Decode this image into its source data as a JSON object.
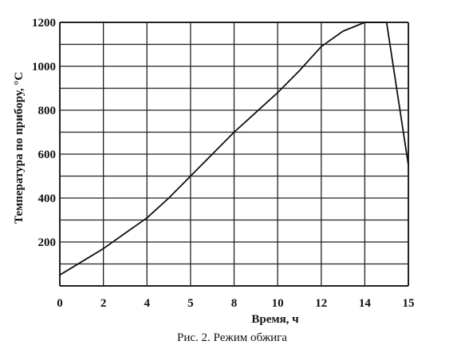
{
  "chart_data": {
    "type": "line",
    "title": "",
    "caption": "Рис. 2. Режим обжига",
    "xlabel": "Время, ч",
    "ylabel": "Температура по прибору, °С",
    "x_ticks": [
      "0",
      "2",
      "4",
      "5",
      "8",
      "10",
      "12",
      "14",
      "15"
    ],
    "y_ticks": [
      "200",
      "400",
      "600",
      "800",
      "1000",
      "1200"
    ],
    "ylim": [
      0,
      1200
    ],
    "grid": true,
    "series": [
      {
        "x": [
          0,
          1,
          2,
          3,
          4,
          5,
          6,
          7,
          8,
          9,
          10,
          11,
          12,
          13,
          14,
          14.5,
          15
        ],
        "y": [
          50,
          110,
          170,
          240,
          310,
          400,
          500,
          600,
          700,
          790,
          880,
          980,
          1090,
          1160,
          1200,
          1200,
          550
        ]
      }
    ],
    "colors": {
      "line": "#111111",
      "grid": "#222222"
    }
  }
}
